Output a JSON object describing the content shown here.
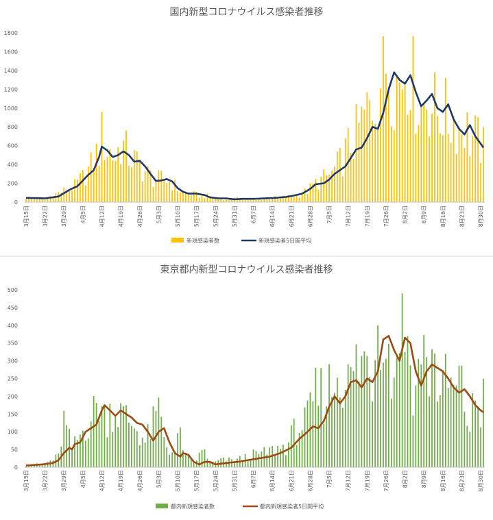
{
  "chart_data": [
    {
      "type": "bar",
      "title": "国内新型コロナウイルス感染者推移",
      "x_tick_labels": [
        "3月15日",
        "3月22日",
        "3月29日",
        "4月5日",
        "4月12日",
        "4月19日",
        "4月26日",
        "5月3日",
        "5月10日",
        "5月17日",
        "5月24日",
        "5月31日",
        "6月7日",
        "6月14日",
        "6月21日",
        "6月28日",
        "7月5日",
        "7月12日",
        "7月19日",
        "7月26日",
        "8月2日",
        "8月9日",
        "8月16日",
        "8月23日",
        "8月30日"
      ],
      "x_start": "3月15日",
      "days": 170,
      "ylim": [
        0,
        1800
      ],
      "yticks": [
        0,
        200,
        400,
        600,
        800,
        1000,
        1200,
        1400,
        1600,
        1800
      ],
      "grid": false,
      "legend_position": "bottom",
      "series": [
        {
          "name": "新規感染者数",
          "kind": "bar",
          "color": "#FFC000"
        },
        {
          "name": "新規感染者5日間平均",
          "kind": "line",
          "color": "#1F3864"
        }
      ],
      "daily_keypoints": [
        [
          0,
          50
        ],
        [
          7,
          40
        ],
        [
          14,
          120
        ],
        [
          18,
          170
        ],
        [
          21,
          260
        ],
        [
          24,
          380
        ],
        [
          27,
          560
        ],
        [
          28,
          700
        ],
        [
          30,
          560
        ],
        [
          33,
          480
        ],
        [
          35,
          620
        ],
        [
          38,
          500
        ],
        [
          42,
          380
        ],
        [
          45,
          300
        ],
        [
          48,
          230
        ],
        [
          51,
          250
        ],
        [
          54,
          200
        ],
        [
          57,
          120
        ],
        [
          61,
          90
        ],
        [
          64,
          70
        ],
        [
          68,
          60
        ],
        [
          72,
          40
        ],
        [
          76,
          35
        ],
        [
          80,
          40
        ],
        [
          84,
          35
        ],
        [
          88,
          38
        ],
        [
          92,
          45
        ],
        [
          96,
          55
        ],
        [
          100,
          70
        ],
        [
          104,
          120
        ],
        [
          107,
          200
        ],
        [
          110,
          250
        ],
        [
          113,
          300
        ],
        [
          116,
          420
        ],
        [
          119,
          580
        ],
        [
          122,
          720
        ],
        [
          125,
          900
        ],
        [
          128,
          1050
        ],
        [
          130,
          1250
        ],
        [
          132,
          1450
        ],
        [
          134,
          1520
        ],
        [
          136,
          1350
        ],
        [
          138,
          1250
        ],
        [
          140,
          1500
        ],
        [
          142,
          1550
        ],
        [
          144,
          1200
        ],
        [
          146,
          1000
        ],
        [
          148,
          1150
        ],
        [
          150,
          1050
        ],
        [
          152,
          950
        ],
        [
          154,
          1000
        ],
        [
          156,
          850
        ],
        [
          158,
          900
        ],
        [
          160,
          780
        ],
        [
          162,
          850
        ],
        [
          164,
          680
        ],
        [
          166,
          680
        ],
        [
          168,
          620
        ],
        [
          169,
          560
        ]
      ],
      "daily_note": "keypoints are [day index from 3月15日, value]",
      "avg_keypoints": [
        [
          0,
          45
        ],
        [
          7,
          40
        ],
        [
          12,
          60
        ],
        [
          16,
          130
        ],
        [
          19,
          170
        ],
        [
          21,
          230
        ],
        [
          23,
          290
        ],
        [
          25,
          340
        ],
        [
          27,
          480
        ],
        [
          28,
          590
        ],
        [
          30,
          550
        ],
        [
          32,
          480
        ],
        [
          34,
          500
        ],
        [
          36,
          540
        ],
        [
          38,
          500
        ],
        [
          40,
          430
        ],
        [
          42,
          440
        ],
        [
          44,
          380
        ],
        [
          46,
          300
        ],
        [
          48,
          225
        ],
        [
          50,
          230
        ],
        [
          52,
          245
        ],
        [
          54,
          220
        ],
        [
          56,
          150
        ],
        [
          58,
          110
        ],
        [
          60,
          90
        ],
        [
          63,
          90
        ],
        [
          66,
          75
        ],
        [
          68,
          50
        ],
        [
          71,
          40
        ],
        [
          74,
          40
        ],
        [
          77,
          30
        ],
        [
          80,
          35
        ],
        [
          84,
          35
        ],
        [
          88,
          40
        ],
        [
          92,
          45
        ],
        [
          96,
          55
        ],
        [
          99,
          70
        ],
        [
          102,
          90
        ],
        [
          105,
          140
        ],
        [
          107,
          190
        ],
        [
          110,
          200
        ],
        [
          112,
          240
        ],
        [
          114,
          300
        ],
        [
          116,
          340
        ],
        [
          118,
          380
        ],
        [
          120,
          470
        ],
        [
          122,
          560
        ],
        [
          124,
          580
        ],
        [
          126,
          680
        ],
        [
          128,
          800
        ],
        [
          130,
          780
        ],
        [
          132,
          950
        ],
        [
          134,
          1200
        ],
        [
          136,
          1380
        ],
        [
          138,
          1300
        ],
        [
          140,
          1260
        ],
        [
          142,
          1350
        ],
        [
          144,
          1170
        ],
        [
          146,
          1020
        ],
        [
          148,
          1080
        ],
        [
          150,
          1150
        ],
        [
          152,
          1000
        ],
        [
          154,
          960
        ],
        [
          156,
          1040
        ],
        [
          158,
          880
        ],
        [
          160,
          780
        ],
        [
          162,
          720
        ],
        [
          164,
          820
        ],
        [
          166,
          700
        ],
        [
          168,
          620
        ],
        [
          169,
          580
        ]
      ]
    },
    {
      "type": "bar",
      "title": "東京都内新型コロナウイルス感染者推移",
      "x_tick_labels": [
        "3月15日",
        "3月22日",
        "3月29日",
        "4月5日",
        "4月12日",
        "4月19日",
        "4月26日",
        "5月3日",
        "5月10日",
        "5月17日",
        "5月24日",
        "5月31日",
        "6月7日",
        "6月14日",
        "6月21日",
        "6月28日",
        "7月5日",
        "7月12日",
        "7月19日",
        "7月26日",
        "8月2日",
        "8月9日",
        "8月16日",
        "8月23日",
        "8月30日"
      ],
      "x_start": "3月15日",
      "days": 170,
      "ylim": [
        0,
        500
      ],
      "yticks": [
        0,
        50,
        100,
        150,
        200,
        250,
        300,
        350,
        400,
        450,
        500
      ],
      "grid": false,
      "legend_position": "bottom",
      "series": [
        {
          "name": "都内新規感染者数",
          "kind": "bar",
          "color": "#70AD47"
        },
        {
          "name": "都内新規感染者5日間平均",
          "kind": "line",
          "color": "#9C4A14"
        }
      ],
      "daily_keypoints": [
        [
          0,
          5
        ],
        [
          7,
          10
        ],
        [
          12,
          30
        ],
        [
          14,
          130
        ],
        [
          17,
          50
        ],
        [
          20,
          90
        ],
        [
          23,
          130
        ],
        [
          25,
          150
        ],
        [
          27,
          190
        ],
        [
          29,
          140
        ],
        [
          32,
          170
        ],
        [
          35,
          150
        ],
        [
          38,
          130
        ],
        [
          41,
          110
        ],
        [
          44,
          70
        ],
        [
          47,
          120
        ],
        [
          49,
          160
        ],
        [
          52,
          60
        ],
        [
          55,
          40
        ],
        [
          57,
          100
        ],
        [
          59,
          30
        ],
        [
          62,
          15
        ],
        [
          66,
          50
        ],
        [
          68,
          10
        ],
        [
          72,
          20
        ],
        [
          76,
          20
        ],
        [
          80,
          25
        ],
        [
          84,
          35
        ],
        [
          88,
          40
        ],
        [
          92,
          50
        ],
        [
          96,
          60
        ],
        [
          100,
          110
        ],
        [
          104,
          130
        ],
        [
          107,
          200
        ],
        [
          110,
          210
        ],
        [
          113,
          230
        ],
        [
          116,
          290
        ],
        [
          119,
          230
        ],
        [
          122,
          280
        ],
        [
          125,
          300
        ],
        [
          128,
          280
        ],
        [
          130,
          440
        ],
        [
          132,
          470
        ],
        [
          134,
          300
        ],
        [
          136,
          250
        ],
        [
          138,
          450
        ],
        [
          140,
          400
        ],
        [
          142,
          300
        ],
        [
          144,
          200
        ],
        [
          146,
          380
        ],
        [
          148,
          250
        ],
        [
          150,
          320
        ],
        [
          152,
          250
        ],
        [
          154,
          220
        ],
        [
          156,
          240
        ],
        [
          158,
          200
        ],
        [
          160,
          240
        ],
        [
          162,
          180
        ],
        [
          164,
          110
        ],
        [
          166,
          200
        ],
        [
          168,
          160
        ],
        [
          169,
          210
        ]
      ],
      "daily_note": "keypoints are [day index from 3月15日, value]",
      "avg_keypoints": [
        [
          0,
          5
        ],
        [
          6,
          8
        ],
        [
          10,
          12
        ],
        [
          12,
          20
        ],
        [
          14,
          40
        ],
        [
          16,
          55
        ],
        [
          17,
          50
        ],
        [
          18,
          65
        ],
        [
          20,
          70
        ],
        [
          22,
          100
        ],
        [
          24,
          110
        ],
        [
          26,
          120
        ],
        [
          28,
          160
        ],
        [
          29,
          175
        ],
        [
          31,
          160
        ],
        [
          33,
          145
        ],
        [
          35,
          160
        ],
        [
          37,
          150
        ],
        [
          39,
          140
        ],
        [
          41,
          125
        ],
        [
          43,
          120
        ],
        [
          45,
          100
        ],
        [
          47,
          75
        ],
        [
          49,
          100
        ],
        [
          51,
          110
        ],
        [
          53,
          70
        ],
        [
          55,
          40
        ],
        [
          57,
          30
        ],
        [
          58,
          40
        ],
        [
          60,
          35
        ],
        [
          62,
          15
        ],
        [
          64,
          8
        ],
        [
          66,
          15
        ],
        [
          68,
          15
        ],
        [
          70,
          8
        ],
        [
          74,
          12
        ],
        [
          78,
          15
        ],
        [
          82,
          20
        ],
        [
          86,
          25
        ],
        [
          90,
          30
        ],
        [
          94,
          40
        ],
        [
          98,
          55
        ],
        [
          101,
          80
        ],
        [
          104,
          100
        ],
        [
          106,
          115
        ],
        [
          108,
          110
        ],
        [
          110,
          130
        ],
        [
          112,
          170
        ],
        [
          114,
          200
        ],
        [
          116,
          180
        ],
        [
          118,
          200
        ],
        [
          120,
          240
        ],
        [
          122,
          245
        ],
        [
          124,
          225
        ],
        [
          126,
          250
        ],
        [
          128,
          240
        ],
        [
          130,
          270
        ],
        [
          132,
          360
        ],
        [
          134,
          370
        ],
        [
          136,
          330
        ],
        [
          138,
          300
        ],
        [
          140,
          365
        ],
        [
          142,
          350
        ],
        [
          144,
          270
        ],
        [
          146,
          230
        ],
        [
          148,
          270
        ],
        [
          150,
          290
        ],
        [
          152,
          280
        ],
        [
          154,
          270
        ],
        [
          156,
          250
        ],
        [
          158,
          225
        ],
        [
          160,
          210
        ],
        [
          162,
          220
        ],
        [
          164,
          200
        ],
        [
          166,
          175
        ],
        [
          168,
          160
        ],
        [
          169,
          155
        ]
      ]
    }
  ]
}
